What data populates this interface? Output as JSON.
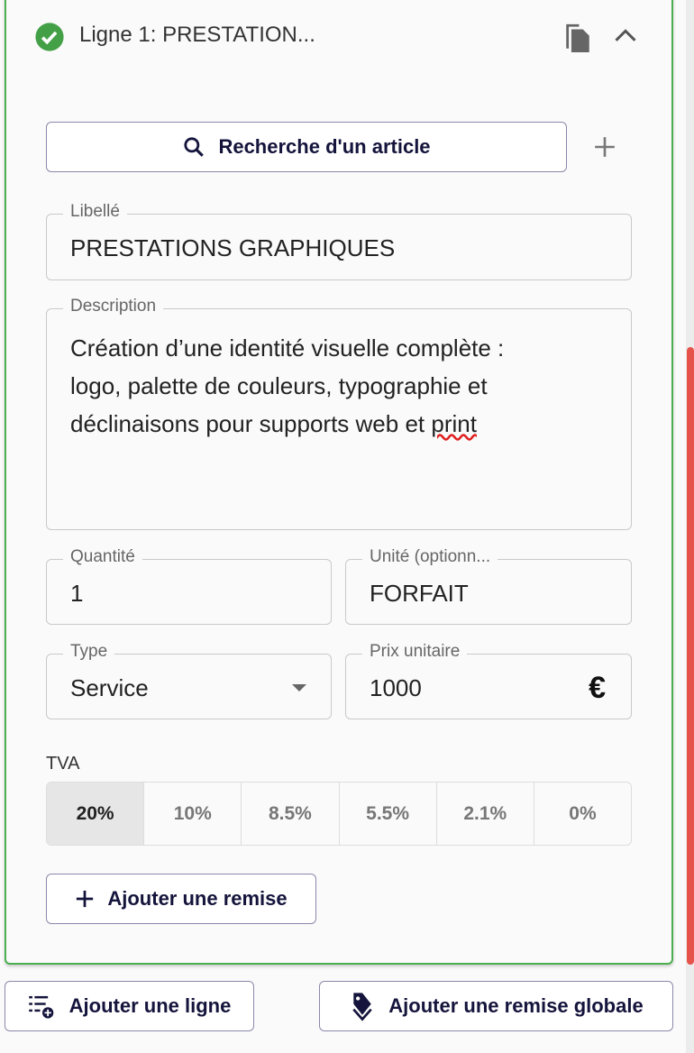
{
  "line": {
    "title": "Ligne 1: PRESTATION...",
    "status_color": "#43a047"
  },
  "search_button": "Recherche d'un article",
  "libelle": {
    "label": "Libellé",
    "value": "PRESTATIONS GRAPHIQUES"
  },
  "description": {
    "label": "Description",
    "lines": [
      "Création d’une identité visuelle complète :",
      "logo, palette de couleurs, typographie et",
      "déclinaisons pour supports web et "
    ],
    "underlined_word": "print"
  },
  "quantite": {
    "label": "Quantité",
    "value": "1"
  },
  "unite": {
    "label": "Unité (optionn...",
    "value": "FORFAIT"
  },
  "type": {
    "label": "Type",
    "value": "Service"
  },
  "prix": {
    "label": "Prix unitaire",
    "value": "1000",
    "currency": "€"
  },
  "tva": {
    "label": "TVA",
    "options": [
      "20%",
      "10%",
      "8.5%",
      "5.5%",
      "2.1%",
      "0%"
    ],
    "selected": "20%"
  },
  "add_discount": "Ajouter une remise",
  "add_line": "Ajouter une ligne",
  "add_global_discount": "Ajouter une remise globale",
  "scrollbar_color": "#e5534b"
}
